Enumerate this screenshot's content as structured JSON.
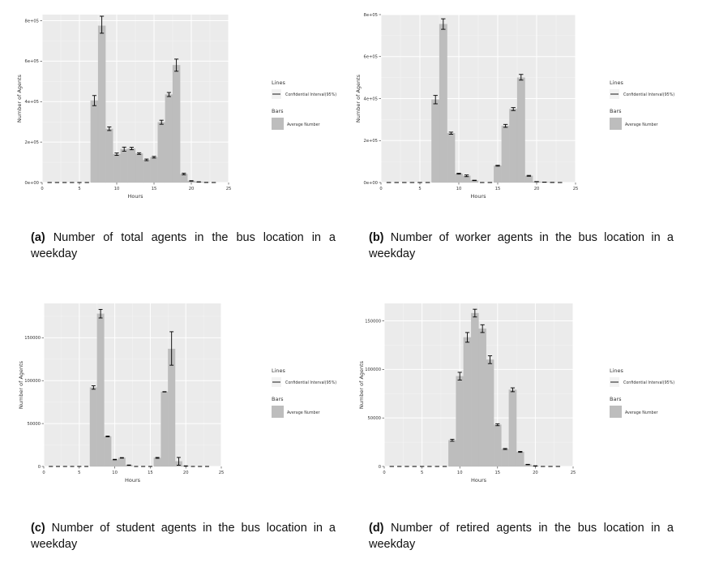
{
  "chart_data": [
    {
      "type": "bar",
      "panel_id": "a",
      "caption_label": "(a)",
      "caption_text": "Number of total agents in the bus location in a weekday",
      "xlabel": "Hours",
      "ylabel": "Number of Agents",
      "xlim": [
        0,
        25
      ],
      "ylim": [
        0,
        830000
      ],
      "x_ticks": [
        0,
        5,
        10,
        15,
        20,
        25
      ],
      "y_ticks": [
        0,
        200000,
        400000,
        600000,
        800000
      ],
      "y_tick_labels": [
        "0e+00",
        "2e+05",
        "4e+05",
        "6e+05",
        "8e+05"
      ],
      "grid": true,
      "legend_position": "right",
      "legend": {
        "lines_title": "Lines",
        "lines_item": "Confidential Interval(95%)",
        "bars_title": "Bars",
        "bars_item": "Average Number"
      },
      "x": [
        1,
        2,
        3,
        4,
        5,
        6,
        7,
        8,
        9,
        10,
        11,
        12,
        13,
        14,
        15,
        16,
        17,
        18,
        19,
        20,
        21,
        22,
        23
      ],
      "values": [
        0,
        0,
        0,
        0,
        0,
        0,
        405000,
        775000,
        265000,
        140000,
        165000,
        168000,
        143000,
        112000,
        125000,
        298000,
        435000,
        580000,
        42000,
        8000,
        3000,
        500,
        0
      ],
      "error_lower": [
        0,
        0,
        0,
        0,
        0,
        0,
        380000,
        738000,
        257000,
        134000,
        155000,
        162000,
        139000,
        108000,
        121000,
        288000,
        425000,
        550000,
        38000,
        7000,
        2500,
        300,
        0
      ],
      "error_upper": [
        0,
        0,
        0,
        0,
        0,
        0,
        430000,
        822000,
        275000,
        146000,
        175000,
        174000,
        147000,
        116000,
        129000,
        308000,
        445000,
        610000,
        46000,
        9000,
        3500,
        700,
        0
      ]
    },
    {
      "type": "bar",
      "panel_id": "b",
      "caption_label": "(b)",
      "caption_text": "Number of worker agents in the bus location in a weekday",
      "xlabel": "Hours",
      "ylabel": "Number of Agents",
      "xlim": [
        0,
        25
      ],
      "ylim": [
        0,
        800000
      ],
      "x_ticks": [
        0,
        5,
        10,
        15,
        20,
        25
      ],
      "y_ticks": [
        0,
        200000,
        400000,
        600000,
        800000
      ],
      "y_tick_labels": [
        "0e+00",
        "2e+05",
        "4e+05",
        "6e+05",
        "8e+05"
      ],
      "grid": true,
      "legend_position": "right",
      "legend": {
        "lines_title": "Lines",
        "lines_item": "Confidential Interval(95%)",
        "bars_title": "Bars",
        "bars_item": "Average Number"
      },
      "x": [
        1,
        2,
        3,
        4,
        5,
        6,
        7,
        8,
        9,
        10,
        11,
        12,
        13,
        14,
        15,
        16,
        17,
        18,
        19,
        20,
        21,
        22,
        23
      ],
      "values": [
        0,
        0,
        0,
        0,
        0,
        0,
        395000,
        755000,
        235000,
        42000,
        32000,
        10000,
        0,
        0,
        80000,
        270000,
        350000,
        500000,
        32000,
        4000,
        1500,
        500,
        0
      ],
      "error_lower": [
        0,
        0,
        0,
        0,
        0,
        0,
        375000,
        730000,
        230000,
        40000,
        28000,
        9000,
        0,
        0,
        78000,
        263000,
        343000,
        488000,
        30000,
        3500,
        1200,
        300,
        0
      ],
      "error_upper": [
        0,
        0,
        0,
        0,
        0,
        0,
        415000,
        780000,
        240000,
        44000,
        36000,
        11000,
        0,
        0,
        82000,
        277000,
        357000,
        515000,
        34000,
        4500,
        1800,
        700,
        0
      ]
    },
    {
      "type": "bar",
      "panel_id": "c",
      "caption_label": "(c)",
      "caption_text": "Number of student agents in the bus location in a weekday",
      "xlabel": "Hours",
      "ylabel": "Number of Agents",
      "xlim": [
        0,
        25
      ],
      "ylim": [
        0,
        190000
      ],
      "x_ticks": [
        0,
        5,
        10,
        15,
        20,
        25
      ],
      "y_ticks": [
        0,
        50000,
        100000,
        150000
      ],
      "y_tick_labels": [
        "0",
        "50000",
        "100000",
        "150000"
      ],
      "grid": true,
      "legend_position": "right",
      "legend": {
        "lines_title": "Lines",
        "lines_item": "Confidential Interval(95%)",
        "bars_title": "Bars",
        "bars_item": "Average Number"
      },
      "x": [
        1,
        2,
        3,
        4,
        5,
        6,
        7,
        8,
        9,
        10,
        11,
        12,
        13,
        14,
        15,
        16,
        17,
        18,
        19,
        20,
        21,
        22,
        23
      ],
      "values": [
        0,
        0,
        0,
        0,
        0,
        0,
        92000,
        178000,
        35000,
        8000,
        10000,
        1500,
        0,
        0,
        0,
        10000,
        87000,
        137000,
        6000,
        500,
        0,
        0,
        0
      ],
      "error_lower": [
        0,
        0,
        0,
        0,
        0,
        0,
        90000,
        173000,
        34500,
        7700,
        9700,
        1300,
        0,
        0,
        0,
        9500,
        86800,
        118000,
        1500,
        300,
        0,
        0,
        0
      ],
      "error_upper": [
        0,
        0,
        0,
        0,
        0,
        0,
        94000,
        183000,
        35500,
        8300,
        10300,
        1700,
        0,
        0,
        0,
        10500,
        87200,
        157000,
        10500,
        700,
        0,
        0,
        0
      ]
    },
    {
      "type": "bar",
      "panel_id": "d",
      "caption_label": "(d)",
      "caption_text": "Number of retired agents in the bus location in a weekday",
      "xlabel": "Hours",
      "ylabel": "Number of Agents",
      "xlim": [
        0,
        25
      ],
      "ylim": [
        0,
        168000
      ],
      "x_ticks": [
        0,
        5,
        10,
        15,
        20,
        25
      ],
      "y_ticks": [
        0,
        50000,
        100000,
        150000
      ],
      "y_tick_labels": [
        "0",
        "50000",
        "100000",
        "150000"
      ],
      "grid": true,
      "legend_position": "right",
      "legend": {
        "lines_title": "Lines",
        "lines_item": "Confidential Interval(95%)",
        "bars_title": "Bars",
        "bars_item": "Average Number"
      },
      "x": [
        1,
        2,
        3,
        4,
        5,
        6,
        7,
        8,
        9,
        10,
        11,
        12,
        13,
        14,
        15,
        16,
        17,
        18,
        19,
        20,
        21,
        22,
        23
      ],
      "values": [
        0,
        0,
        0,
        0,
        0,
        0,
        0,
        0,
        27000,
        93000,
        133000,
        158000,
        142000,
        110000,
        43000,
        18000,
        79000,
        15000,
        2000,
        500,
        0,
        0,
        0
      ],
      "error_lower": [
        0,
        0,
        0,
        0,
        0,
        0,
        0,
        0,
        26000,
        89000,
        128000,
        154000,
        138000,
        106000,
        42000,
        17500,
        77000,
        14500,
        1800,
        300,
        0,
        0,
        0
      ],
      "error_upper": [
        0,
        0,
        0,
        0,
        0,
        0,
        0,
        0,
        28000,
        97000,
        138000,
        162000,
        146000,
        114000,
        44000,
        18500,
        81000,
        15500,
        2200,
        700,
        0,
        0,
        0
      ]
    }
  ]
}
